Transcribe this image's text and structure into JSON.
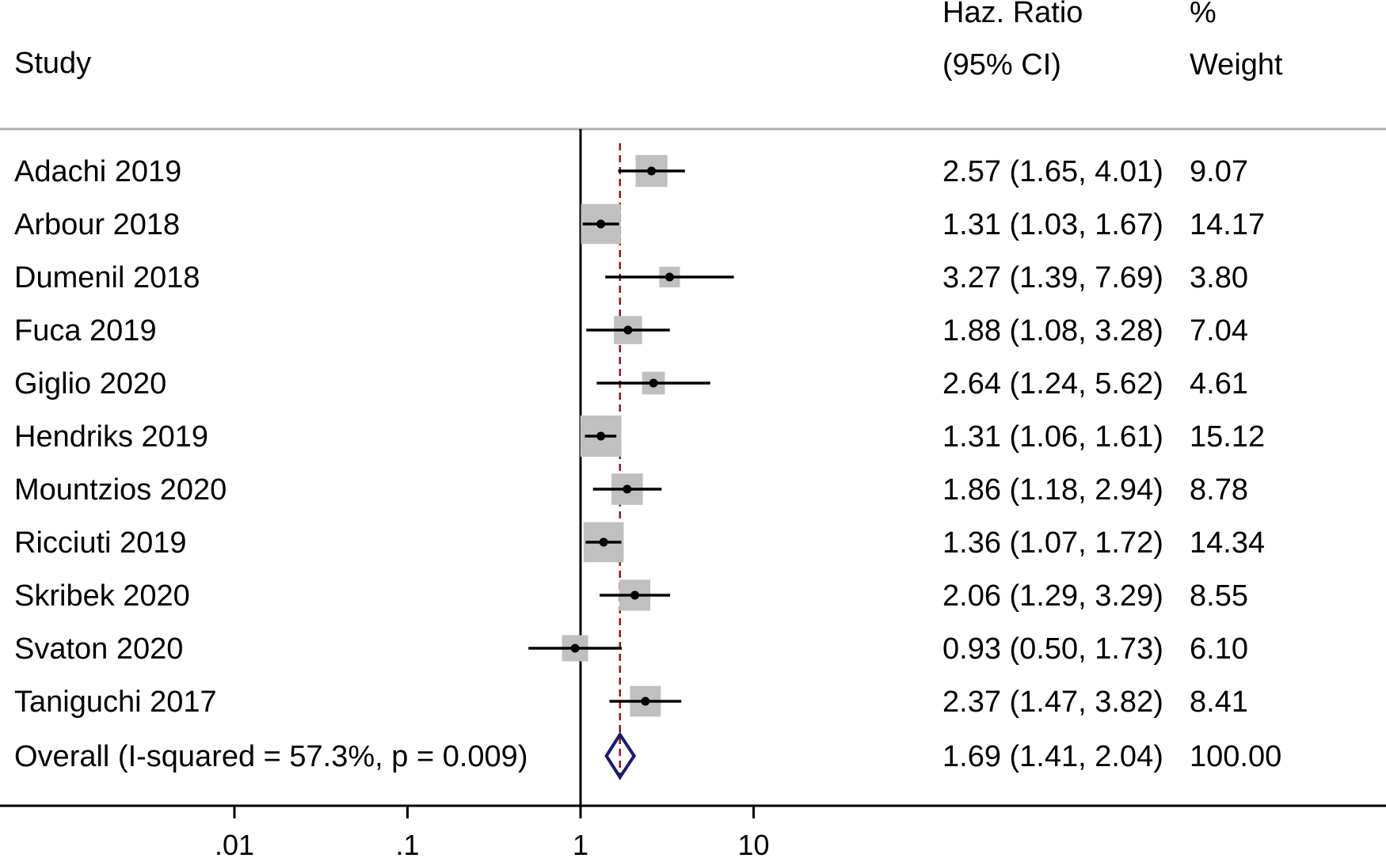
{
  "chart_data": {
    "type": "forest",
    "x_scale": "log",
    "x_ticks": [
      {
        "value": 0.01,
        "label": ".01"
      },
      {
        "value": 0.1,
        "label": ".1"
      },
      {
        "value": 1,
        "label": "1"
      },
      {
        "value": 10,
        "label": "10"
      }
    ],
    "xlim": [
      0.01,
      10
    ],
    "null_line": 1,
    "header": {
      "study": "Study",
      "hr_line1": "Haz. Ratio",
      "hr_line2": "(95% CI)",
      "weight_line1": "%",
      "weight_line2": "Weight"
    },
    "studies": [
      {
        "name": "Adachi 2019",
        "hr": 2.57,
        "lo": 1.65,
        "hi": 4.01,
        "ci_text": "2.57 (1.65, 4.01)",
        "weight": 9.07,
        "weight_text": "9.07"
      },
      {
        "name": "Arbour 2018",
        "hr": 1.31,
        "lo": 1.03,
        "hi": 1.67,
        "ci_text": "1.31 (1.03, 1.67)",
        "weight": 14.17,
        "weight_text": "14.17"
      },
      {
        "name": "Dumenil 2018",
        "hr": 3.27,
        "lo": 1.39,
        "hi": 7.69,
        "ci_text": "3.27 (1.39, 7.69)",
        "weight": 3.8,
        "weight_text": "3.80"
      },
      {
        "name": "Fuca 2019",
        "hr": 1.88,
        "lo": 1.08,
        "hi": 3.28,
        "ci_text": "1.88 (1.08, 3.28)",
        "weight": 7.04,
        "weight_text": "7.04"
      },
      {
        "name": "Giglio 2020",
        "hr": 2.64,
        "lo": 1.24,
        "hi": 5.62,
        "ci_text": "2.64 (1.24, 5.62)",
        "weight": 4.61,
        "weight_text": "4.61"
      },
      {
        "name": "Hendriks 2019",
        "hr": 1.31,
        "lo": 1.06,
        "hi": 1.61,
        "ci_text": "1.31 (1.06, 1.61)",
        "weight": 15.12,
        "weight_text": "15.12"
      },
      {
        "name": "Mountzios 2020",
        "hr": 1.86,
        "lo": 1.18,
        "hi": 2.94,
        "ci_text": "1.86 (1.18, 2.94)",
        "weight": 8.78,
        "weight_text": "8.78"
      },
      {
        "name": "Ricciuti 2019",
        "hr": 1.36,
        "lo": 1.07,
        "hi": 1.72,
        "ci_text": "1.36 (1.07, 1.72)",
        "weight": 14.34,
        "weight_text": "14.34"
      },
      {
        "name": "Skribek 2020",
        "hr": 2.06,
        "lo": 1.29,
        "hi": 3.29,
        "ci_text": "2.06 (1.29, 3.29)",
        "weight": 8.55,
        "weight_text": "8.55"
      },
      {
        "name": "Svaton 2020",
        "hr": 0.93,
        "lo": 0.5,
        "hi": 1.73,
        "ci_text": "0.93 (0.50, 1.73)",
        "weight": 6.1,
        "weight_text": "6.10"
      },
      {
        "name": "Taniguchi 2017",
        "hr": 2.37,
        "lo": 1.47,
        "hi": 3.82,
        "ci_text": "2.37 (1.47, 3.82)",
        "weight": 8.41,
        "weight_text": "8.41"
      }
    ],
    "overall": {
      "name": "Overall  (I-squared = 57.3%, p = 0.009)",
      "hr": 1.69,
      "lo": 1.41,
      "hi": 2.04,
      "ci_text": "1.69 (1.41, 2.04)",
      "weight_text": "100.00"
    },
    "colors": {
      "box": "#c0c0c0",
      "ci_line": "#000000",
      "diamond": "#1a1a6e",
      "overall_line": "#8b1a1a",
      "rule": "#b0b0b0"
    }
  }
}
